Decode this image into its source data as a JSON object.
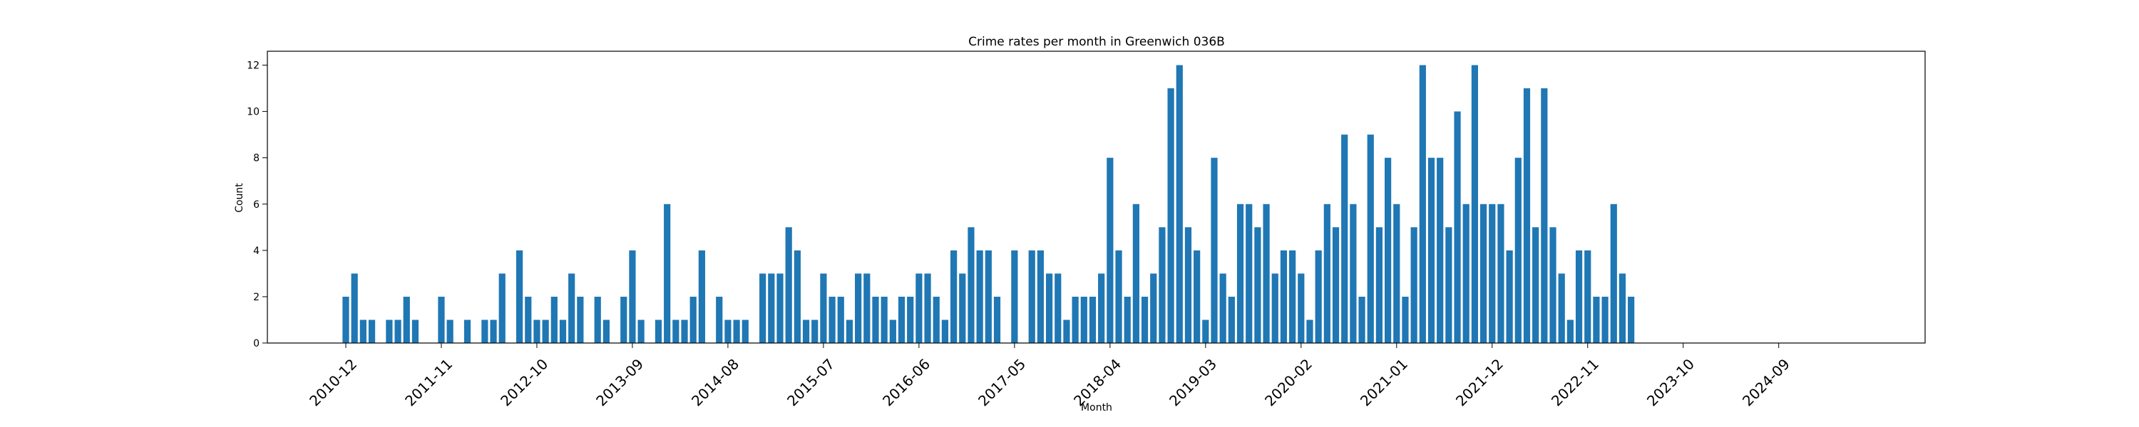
{
  "chart_data": {
    "type": "bar",
    "title": "Crime rates per month in Greenwich 036B",
    "xlabel": "Month",
    "ylabel": "Count",
    "ylim": [
      0,
      12.6
    ],
    "yticks": [
      0,
      2,
      4,
      6,
      8,
      10,
      12
    ],
    "xticks": [
      "2010-12",
      "2011-11",
      "2012-10",
      "2013-09",
      "2014-08",
      "2015-07",
      "2016-06",
      "2017-05",
      "2018-04",
      "2019-03",
      "2020-02",
      "2021-01",
      "2021-12",
      "2022-11",
      "2023-10",
      "2024-09"
    ],
    "grid": false,
    "color": "#1f77b4",
    "categories": [
      "2010-12",
      "2011-01",
      "2011-02",
      "2011-03",
      "2011-04",
      "2011-05",
      "2011-06",
      "2011-07",
      "2011-08",
      "2011-09",
      "2011-10",
      "2011-11",
      "2011-12",
      "2012-01",
      "2012-02",
      "2012-03",
      "2012-04",
      "2012-05",
      "2012-06",
      "2012-07",
      "2012-08",
      "2012-09",
      "2012-10",
      "2012-11",
      "2012-12",
      "2013-01",
      "2013-02",
      "2013-03",
      "2013-04",
      "2013-05",
      "2013-06",
      "2013-07",
      "2013-08",
      "2013-09",
      "2013-10",
      "2013-11",
      "2013-12",
      "2014-01",
      "2014-02",
      "2014-03",
      "2014-04",
      "2014-05",
      "2014-06",
      "2014-07",
      "2014-08",
      "2014-09",
      "2014-10",
      "2014-11",
      "2014-12",
      "2015-01",
      "2015-02",
      "2015-03",
      "2015-04",
      "2015-05",
      "2015-06",
      "2015-07",
      "2015-08",
      "2015-09",
      "2015-10",
      "2015-11",
      "2015-12",
      "2016-01",
      "2016-02",
      "2016-03",
      "2016-04",
      "2016-05",
      "2016-06",
      "2016-07",
      "2016-08",
      "2016-09",
      "2016-10",
      "2016-11",
      "2016-12",
      "2017-01",
      "2017-02",
      "2017-03",
      "2017-04",
      "2017-05",
      "2017-06",
      "2017-07",
      "2017-08",
      "2017-09",
      "2017-10",
      "2017-11",
      "2017-12",
      "2018-01",
      "2018-02",
      "2018-03",
      "2018-04",
      "2018-05",
      "2018-06",
      "2018-07",
      "2018-08",
      "2018-09",
      "2018-10",
      "2018-11",
      "2018-12",
      "2019-01",
      "2019-02",
      "2019-03",
      "2019-04",
      "2019-05",
      "2019-06",
      "2019-07",
      "2019-08",
      "2019-09",
      "2019-10",
      "2019-11",
      "2019-12",
      "2020-01",
      "2020-02",
      "2020-03",
      "2020-04",
      "2020-05",
      "2020-06",
      "2020-07",
      "2020-08",
      "2020-09",
      "2020-10",
      "2020-11",
      "2020-12",
      "2021-01",
      "2021-02",
      "2021-03",
      "2021-04",
      "2021-05",
      "2021-06",
      "2021-07",
      "2021-08",
      "2021-09",
      "2021-10",
      "2021-11",
      "2021-12",
      "2022-01",
      "2022-02",
      "2022-03",
      "2022-04",
      "2022-05",
      "2022-06",
      "2022-07",
      "2022-08",
      "2022-09",
      "2022-10",
      "2022-11",
      "2022-12",
      "2023-01",
      "2023-02",
      "2023-03",
      "2023-04"
    ],
    "values": [
      2,
      3,
      1,
      1,
      0,
      1,
      1,
      2,
      1,
      0,
      0,
      2,
      1,
      0,
      1,
      0,
      1,
      1,
      3,
      0,
      4,
      2,
      1,
      1,
      2,
      1,
      3,
      2,
      0,
      2,
      1,
      0,
      2,
      4,
      1,
      0,
      1,
      6,
      1,
      1,
      2,
      4,
      0,
      2,
      1,
      1,
      1,
      0,
      3,
      3,
      3,
      5,
      4,
      1,
      1,
      3,
      2,
      2,
      1,
      3,
      3,
      2,
      2,
      1,
      2,
      2,
      3,
      3,
      2,
      1,
      4,
      3,
      5,
      4,
      4,
      2,
      0,
      4,
      0,
      4,
      4,
      3,
      3,
      1,
      2,
      2,
      2,
      3,
      8,
      4,
      2,
      6,
      2,
      3,
      5,
      11,
      12,
      5,
      4,
      1,
      8,
      3,
      2,
      6,
      6,
      5,
      6,
      3,
      4,
      4,
      3,
      1,
      4,
      6,
      5,
      9,
      6,
      2,
      9,
      5,
      8,
      6,
      2,
      5,
      12,
      8,
      8,
      5,
      10,
      6,
      12,
      6,
      6,
      6,
      4,
      8,
      11,
      5,
      11,
      5,
      3,
      1,
      4,
      4,
      2,
      2,
      6,
      3,
      2
    ]
  }
}
